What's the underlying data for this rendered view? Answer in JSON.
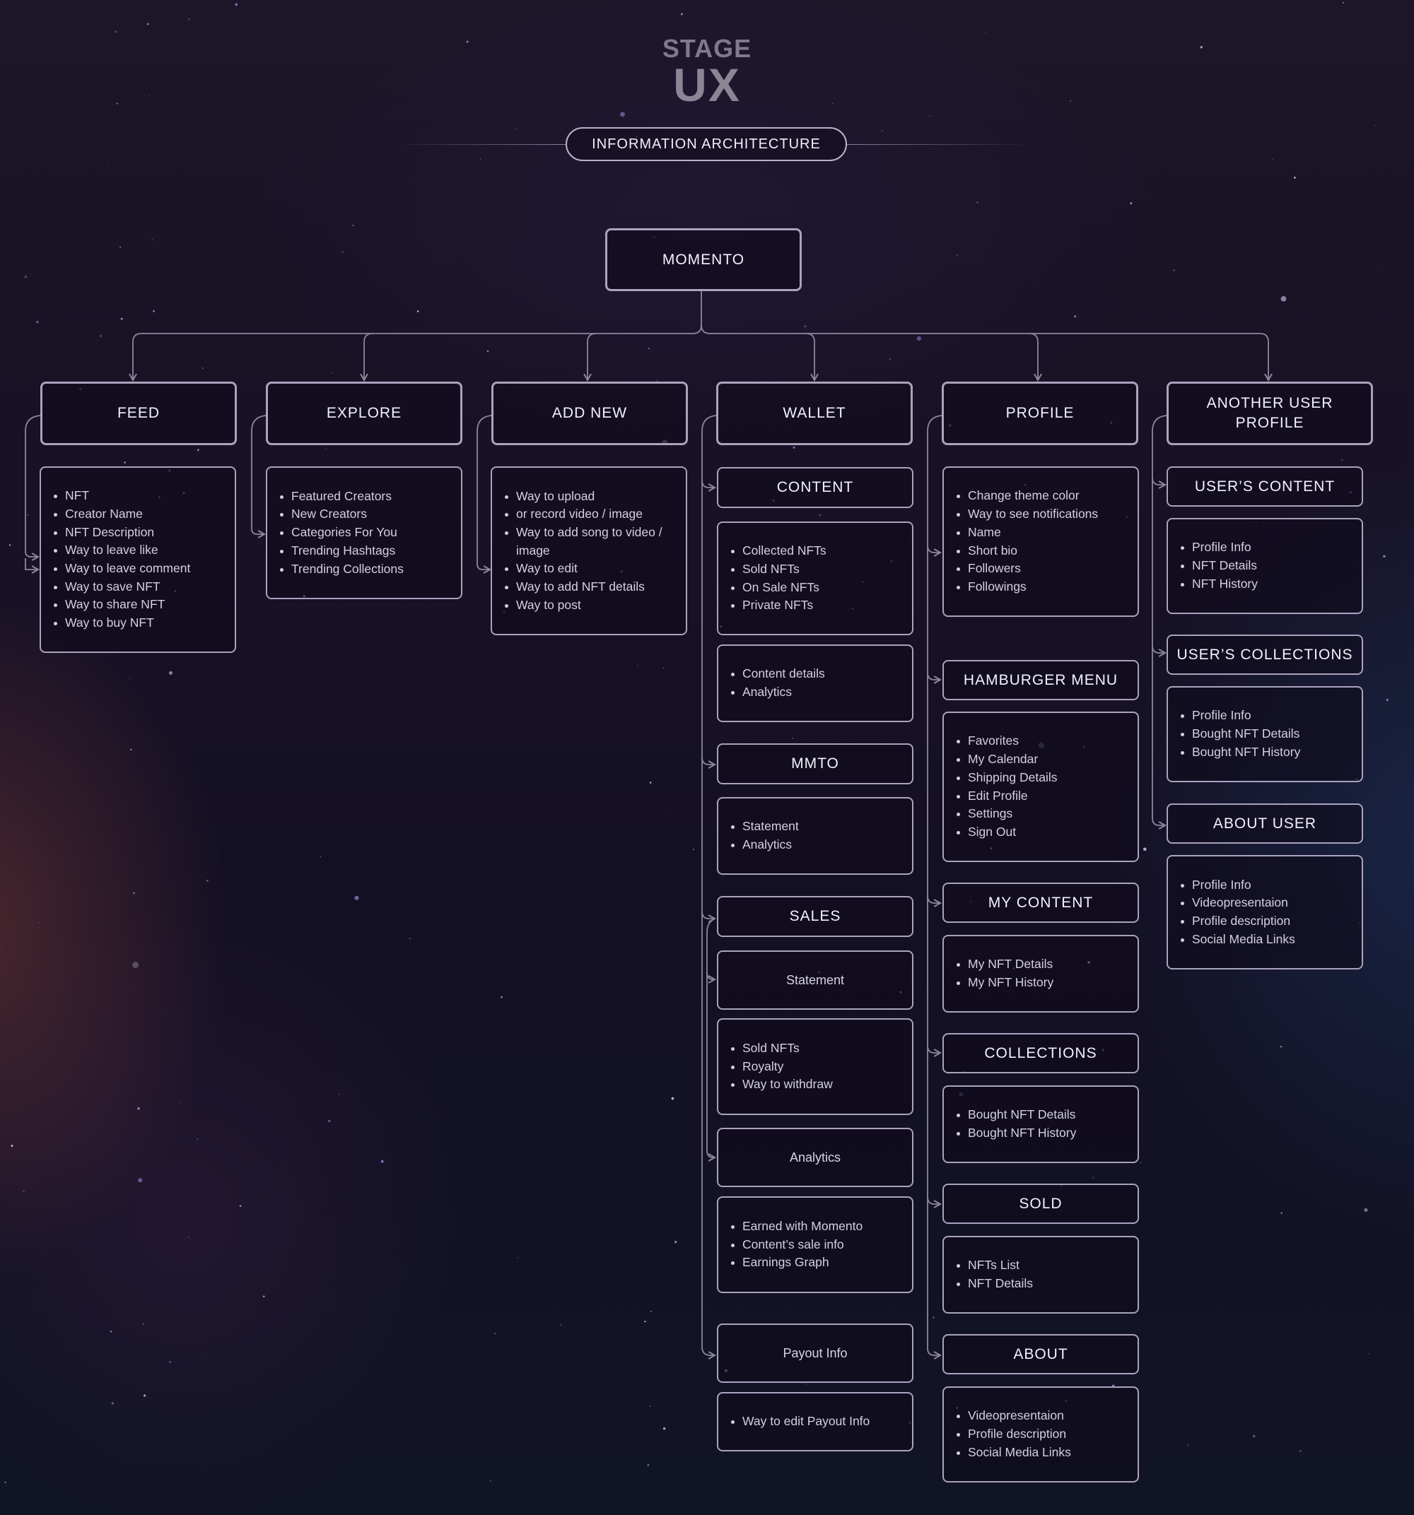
{
  "header": {
    "stage": "STAGE",
    "ux": "UX",
    "section_title": "INFORMATION ARCHITECTURE"
  },
  "colors": {
    "background": "#161123",
    "box_border": "#aaa3bd",
    "connector": "#8d879e",
    "text": "#f2f0fa"
  },
  "root": {
    "label": "MOMENTO"
  },
  "feed": {
    "title": "FEED",
    "items": [
      "NFT",
      "Creator Name",
      "NFT Description",
      "Way to leave like",
      "Way to leave comment",
      "Way to save NFT",
      "Way to share NFT",
      "Way to buy NFT"
    ]
  },
  "explore": {
    "title": "EXPLORE",
    "items": [
      "Featured Creators",
      "New Creators",
      "Categories For You",
      "Trending Hashtags",
      "Trending Collections"
    ]
  },
  "add_new": {
    "title": "ADD NEW",
    "items": [
      "Way to upload",
      "or record video / image",
      "Way to add song to video / image",
      "Way to edit",
      "Way to add NFT details",
      "Way to post"
    ]
  },
  "wallet": {
    "title": "WALLET",
    "content": {
      "title": "CONTENT",
      "items": [
        "Collected NFTs",
        "Sold NFTs",
        "On Sale NFTs",
        "Private NFTs"
      ],
      "details": [
        "Content details",
        "Analytics"
      ]
    },
    "mmto": {
      "title": "MMTO",
      "items": [
        "Statement",
        "Analytics"
      ]
    },
    "sales": {
      "title": "SALES",
      "statement": "Statement",
      "statement_items": [
        "Sold NFTs",
        "Royalty",
        "Way to withdraw"
      ],
      "analytics": "Analytics",
      "analytics_items": [
        "Earned with Momento",
        "Content’s sale info",
        "Earnings Graph"
      ],
      "payout": "Payout Info",
      "payout_items": [
        "Way to edit Payout Info"
      ]
    }
  },
  "profile": {
    "title": "PROFILE",
    "items": [
      "Change theme color",
      "Way to see notifications",
      "Name",
      "Short bio",
      "Followers",
      "Followings"
    ],
    "hamburger": {
      "title": "HAMBURGER MENU",
      "items": [
        "Favorites",
        "My Calendar",
        "Shipping Details",
        "Edit Profile",
        "Settings",
        "Sign Out"
      ]
    },
    "my_content": {
      "title": "MY CONTENT",
      "items": [
        "My NFT Details",
        "My NFT History"
      ]
    },
    "collections": {
      "title": "COLLECTIONS",
      "items": [
        "Bought NFT Details",
        "Bought NFT History"
      ]
    },
    "sold": {
      "title": "SOLD",
      "items": [
        "NFTs List",
        "NFT Details"
      ]
    },
    "about": {
      "title": "ABOUT",
      "items": [
        "Videopresentaion",
        "Profile description",
        "Social Media Links"
      ]
    }
  },
  "another_user": {
    "title": "ANOTHER USER PROFILE",
    "users_content": {
      "title": "USER’S CONTENT",
      "items": [
        "Profile Info",
        "NFT Details",
        "NFT History"
      ]
    },
    "users_collections": {
      "title": "USER’S COLLECTIONS",
      "items": [
        "Profile Info",
        "Bought NFT Details",
        "Bought NFT History"
      ]
    },
    "about_user": {
      "title": "ABOUT USER",
      "items": [
        "Profile Info",
        "Videopresentaion",
        "Profile description",
        "Social Media Links"
      ]
    }
  }
}
